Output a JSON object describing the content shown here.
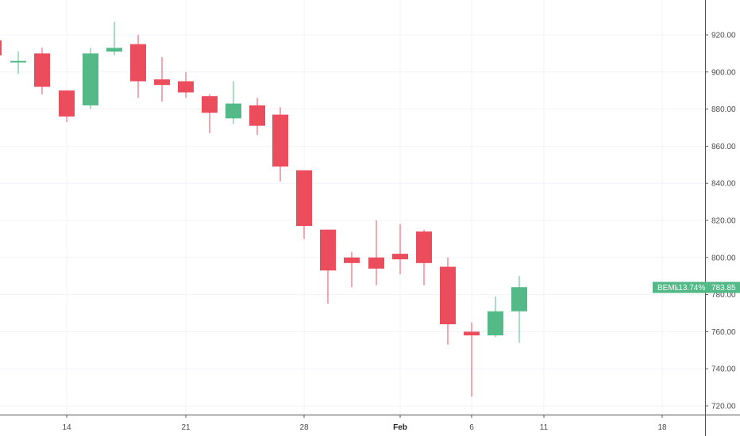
{
  "chart_data": {
    "type": "candlestick",
    "ylim": [
      713,
      935
    ],
    "y_ticks": [
      "920.00",
      "900.00",
      "880.00",
      "860.00",
      "840.00",
      "820.00",
      "800.00",
      "780.00",
      "760.00",
      "740.00",
      "720.00"
    ],
    "x_ticks": [
      "14",
      "21",
      "28",
      "Feb",
      "6",
      "11",
      "18"
    ],
    "grid": true,
    "candles": [
      {
        "date": "Jan 9",
        "open": 917,
        "high": 917,
        "low": 909,
        "close": 909
      },
      {
        "date": "Jan 10",
        "open": 906,
        "high": 911,
        "low": 899,
        "close": 906
      },
      {
        "date": "Jan 11",
        "open": 910,
        "high": 913,
        "low": 888,
        "close": 892
      },
      {
        "date": "Jan 13",
        "open": 890,
        "high": 890,
        "low": 873,
        "close": 876
      },
      {
        "date": "Jan 14",
        "open": 882,
        "high": 913,
        "low": 880,
        "close": 910
      },
      {
        "date": "Jan 16",
        "open": 911,
        "high": 927,
        "low": 909,
        "close": 913
      },
      {
        "date": "Jan 17",
        "open": 915,
        "high": 920,
        "low": 886,
        "close": 895
      },
      {
        "date": "Jan 18",
        "open": 896,
        "high": 908,
        "low": 884,
        "close": 893
      },
      {
        "date": "Jan 20",
        "open": 895,
        "high": 900,
        "low": 886,
        "close": 889
      },
      {
        "date": "Jan 21",
        "open": 887,
        "high": 888,
        "low": 867,
        "close": 878
      },
      {
        "date": "Jan 22",
        "open": 875,
        "high": 895,
        "low": 872,
        "close": 883
      },
      {
        "date": "Jan 23",
        "open": 882,
        "high": 886,
        "low": 866,
        "close": 871
      },
      {
        "date": "Jan 24",
        "open": 877,
        "high": 881,
        "low": 841,
        "close": 849
      },
      {
        "date": "Jan 25",
        "open": 847,
        "high": 847,
        "low": 810,
        "close": 817
      },
      {
        "date": "Jan 27",
        "open": 815,
        "high": 815,
        "low": 775,
        "close": 793
      },
      {
        "date": "Jan 28",
        "open": 800,
        "high": 803,
        "low": 784,
        "close": 797
      },
      {
        "date": "Jan 29",
        "open": 800,
        "high": 820,
        "low": 785,
        "close": 794
      },
      {
        "date": "Jan 30",
        "open": 802,
        "high": 818,
        "low": 791,
        "close": 799
      },
      {
        "date": "Jan 31",
        "open": 814,
        "high": 815,
        "low": 785,
        "close": 797
      },
      {
        "date": "Feb 3",
        "open": 795,
        "high": 800,
        "low": 753,
        "close": 764
      },
      {
        "date": "Feb 4",
        "open": 760,
        "high": 765,
        "low": 725,
        "close": 758
      },
      {
        "date": "Feb 5",
        "open": 758,
        "high": 779,
        "low": 757,
        "close": 771
      },
      {
        "date": "Feb 6",
        "open": 771,
        "high": 790,
        "low": 754,
        "close": 784
      }
    ],
    "last_price_badge": {
      "symbol": "BEML",
      "change": "-13.74%",
      "price": "783.85"
    },
    "colors": {
      "up": "#53b987",
      "down": "#eb4d5c",
      "grid": "#f0f3fa",
      "axis": "#555555",
      "badge": "#53b987"
    }
  }
}
